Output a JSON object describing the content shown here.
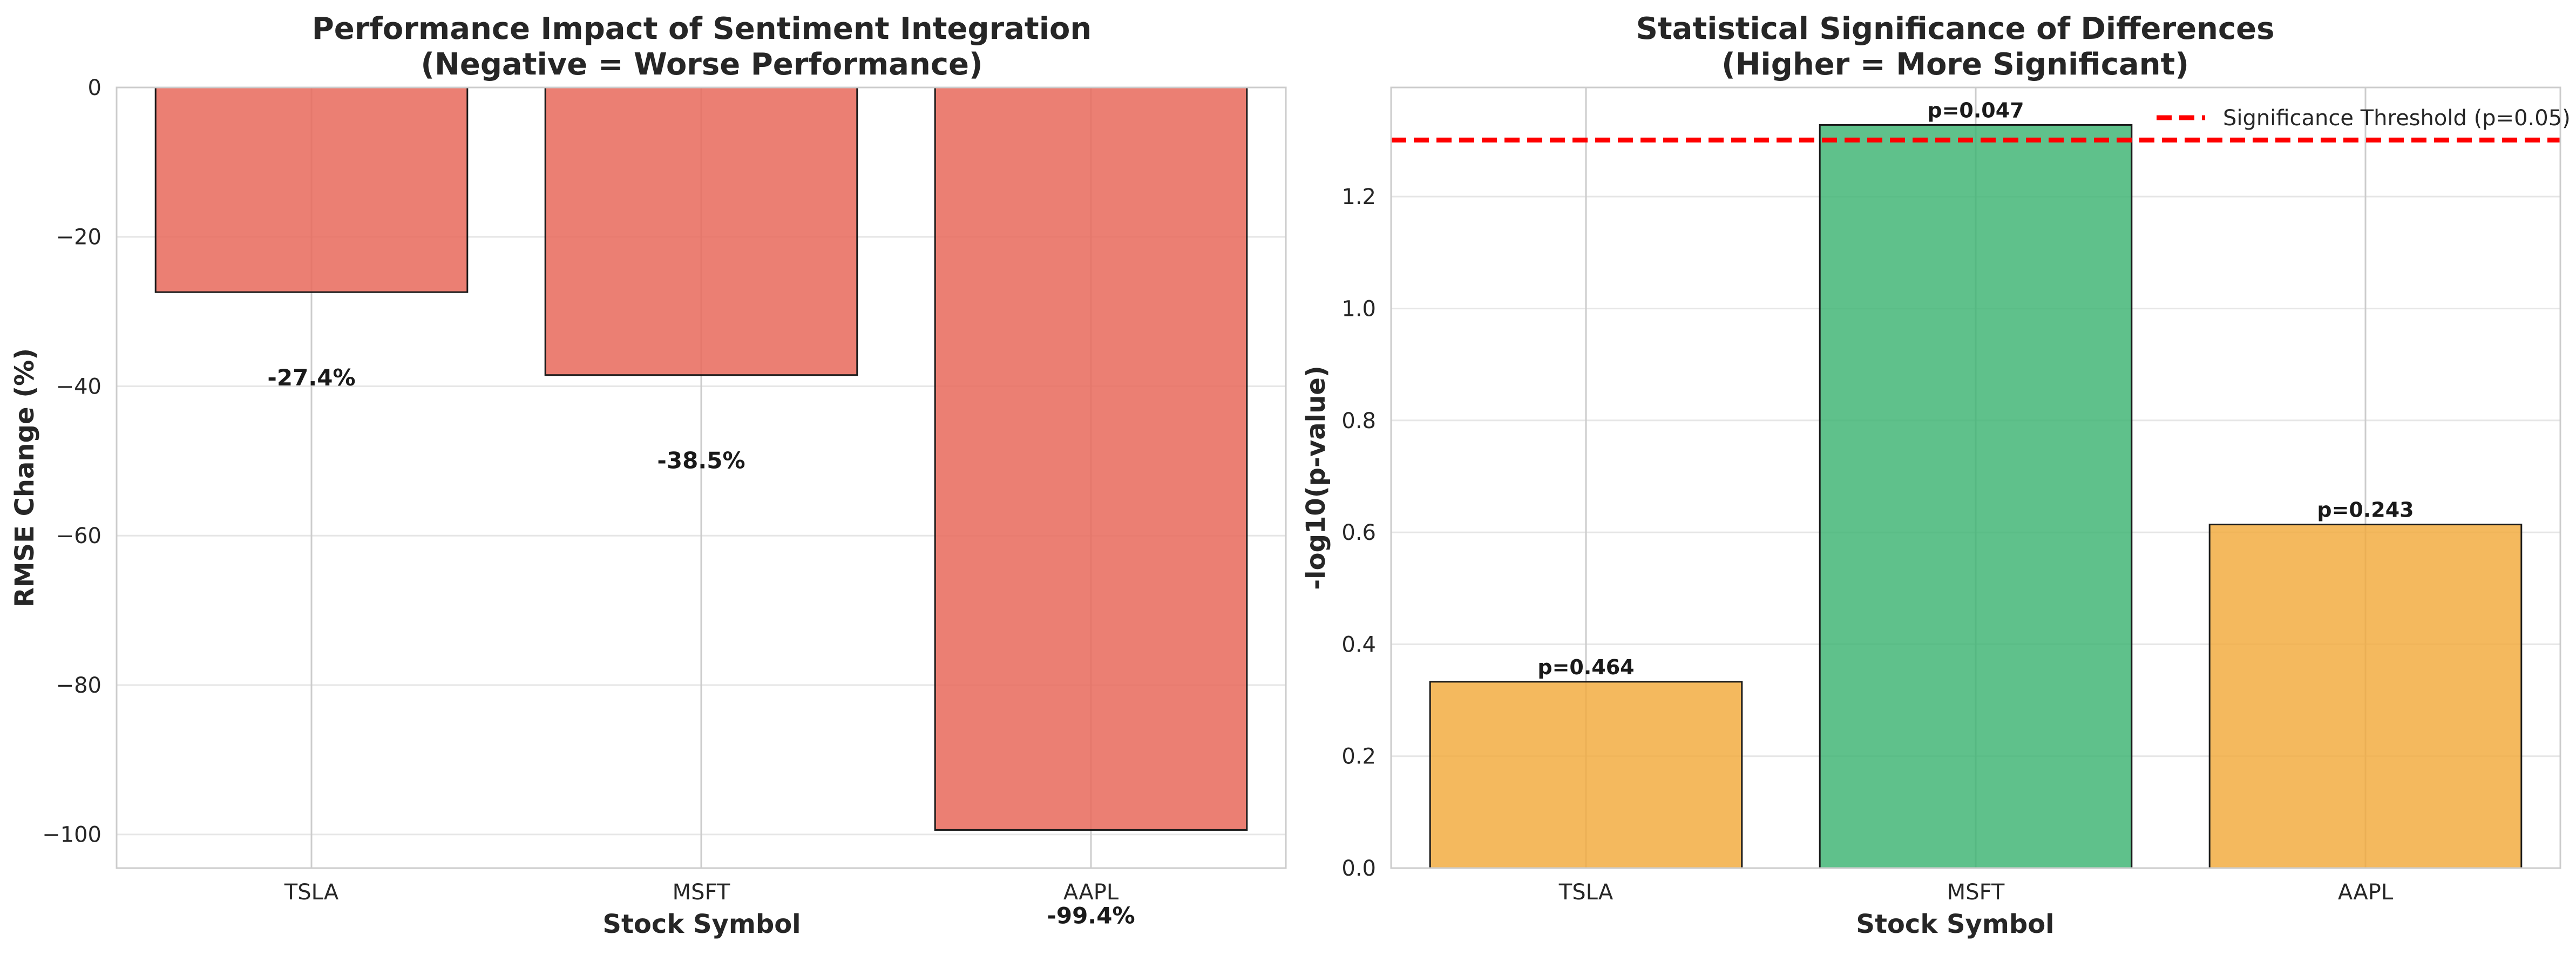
{
  "chart_data": [
    {
      "type": "bar",
      "title": "Performance Impact of Sentiment Integration",
      "subtitle": "(Negative = Worse Performance)",
      "xlabel": "Stock Symbol",
      "ylabel": "RMSE Change (%)",
      "categories": [
        "TSLA",
        "MSFT",
        "AAPL"
      ],
      "values": [
        -27.4,
        -38.5,
        -99.4
      ],
      "data_labels": [
        "-27.4%",
        "-38.5%",
        "-99.4%"
      ],
      "ylim": [
        -104.5,
        0
      ],
      "yticks": [
        0,
        -20,
        -40,
        -60,
        -80,
        -100
      ],
      "ytick_labels": [
        "0",
        "−20",
        "−40",
        "−60",
        "−80",
        "−100"
      ],
      "bar_color": "#e8685a",
      "grid": true
    },
    {
      "type": "bar",
      "title": "Statistical Significance of Differences",
      "subtitle": "(Higher = More Significant)",
      "xlabel": "Stock Symbol",
      "ylabel": "-log10(p-value)",
      "categories": [
        "TSLA",
        "MSFT",
        "AAPL"
      ],
      "values": [
        0.333,
        1.328,
        0.614
      ],
      "data_labels": [
        "p=0.464",
        "p=0.047",
        "p=0.243"
      ],
      "bar_colors": [
        "#f2a93b",
        "#3cb371",
        "#f2a93b"
      ],
      "ylim": [
        0,
        1.395
      ],
      "yticks": [
        0.0,
        0.2,
        0.4,
        0.6,
        0.8,
        1.0,
        1.2
      ],
      "ytick_labels": [
        "0.0",
        "0.2",
        "0.4",
        "0.6",
        "0.8",
        "1.0",
        "1.2"
      ],
      "threshold": 1.301,
      "threshold_color": "#ff0000",
      "legend": {
        "label": "Significance Threshold (p=0.05)",
        "position": "top-right"
      },
      "grid": true
    }
  ]
}
